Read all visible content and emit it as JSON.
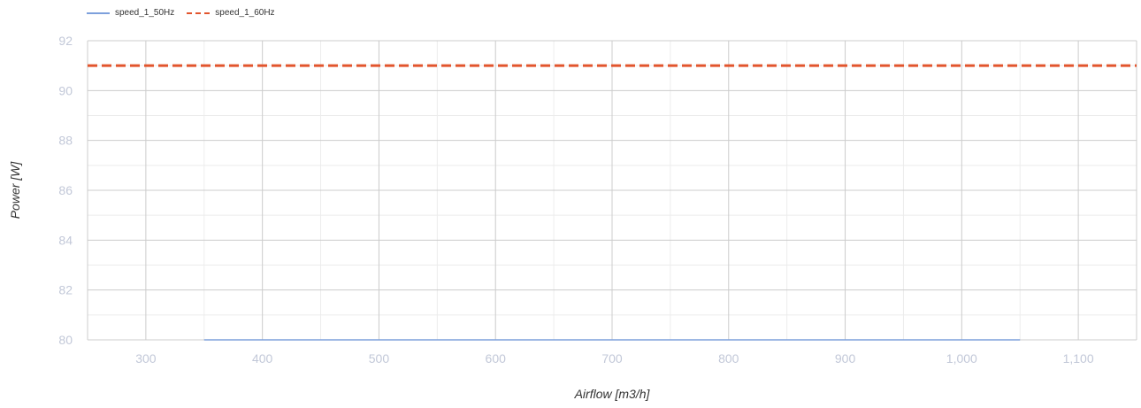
{
  "legend": [
    {
      "label": "speed_1_50Hz",
      "color": "#7da0dc",
      "style": "solid"
    },
    {
      "label": "speed_1_60Hz",
      "color": "#e2552d",
      "style": "dashed"
    }
  ],
  "chart_data": {
    "type": "line",
    "title": "",
    "xlabel": "Airflow [m3/h]",
    "ylabel": "Power [W]",
    "xlim": [
      250,
      1150
    ],
    "ylim": [
      80,
      92
    ],
    "x_ticks": [
      300,
      400,
      500,
      600,
      700,
      800,
      900,
      1000,
      1100
    ],
    "x_tick_labels": [
      "300",
      "400",
      "500",
      "600",
      "700",
      "800",
      "900",
      "1,000",
      "1,100"
    ],
    "y_ticks": [
      80,
      82,
      84,
      86,
      88,
      90,
      92
    ],
    "y_tick_labels": [
      "80",
      "82",
      "84",
      "86",
      "88",
      "90",
      "92"
    ],
    "grid": true,
    "legend_position": "top-left",
    "series": [
      {
        "name": "speed_1_50Hz",
        "color": "#7da0dc",
        "style": "solid",
        "x": [
          350,
          1050
        ],
        "y": [
          80,
          80
        ]
      },
      {
        "name": "speed_1_60Hz",
        "color": "#e2552d",
        "style": "dashed",
        "x": [
          250,
          1150
        ],
        "y": [
          91,
          91
        ]
      }
    ]
  }
}
